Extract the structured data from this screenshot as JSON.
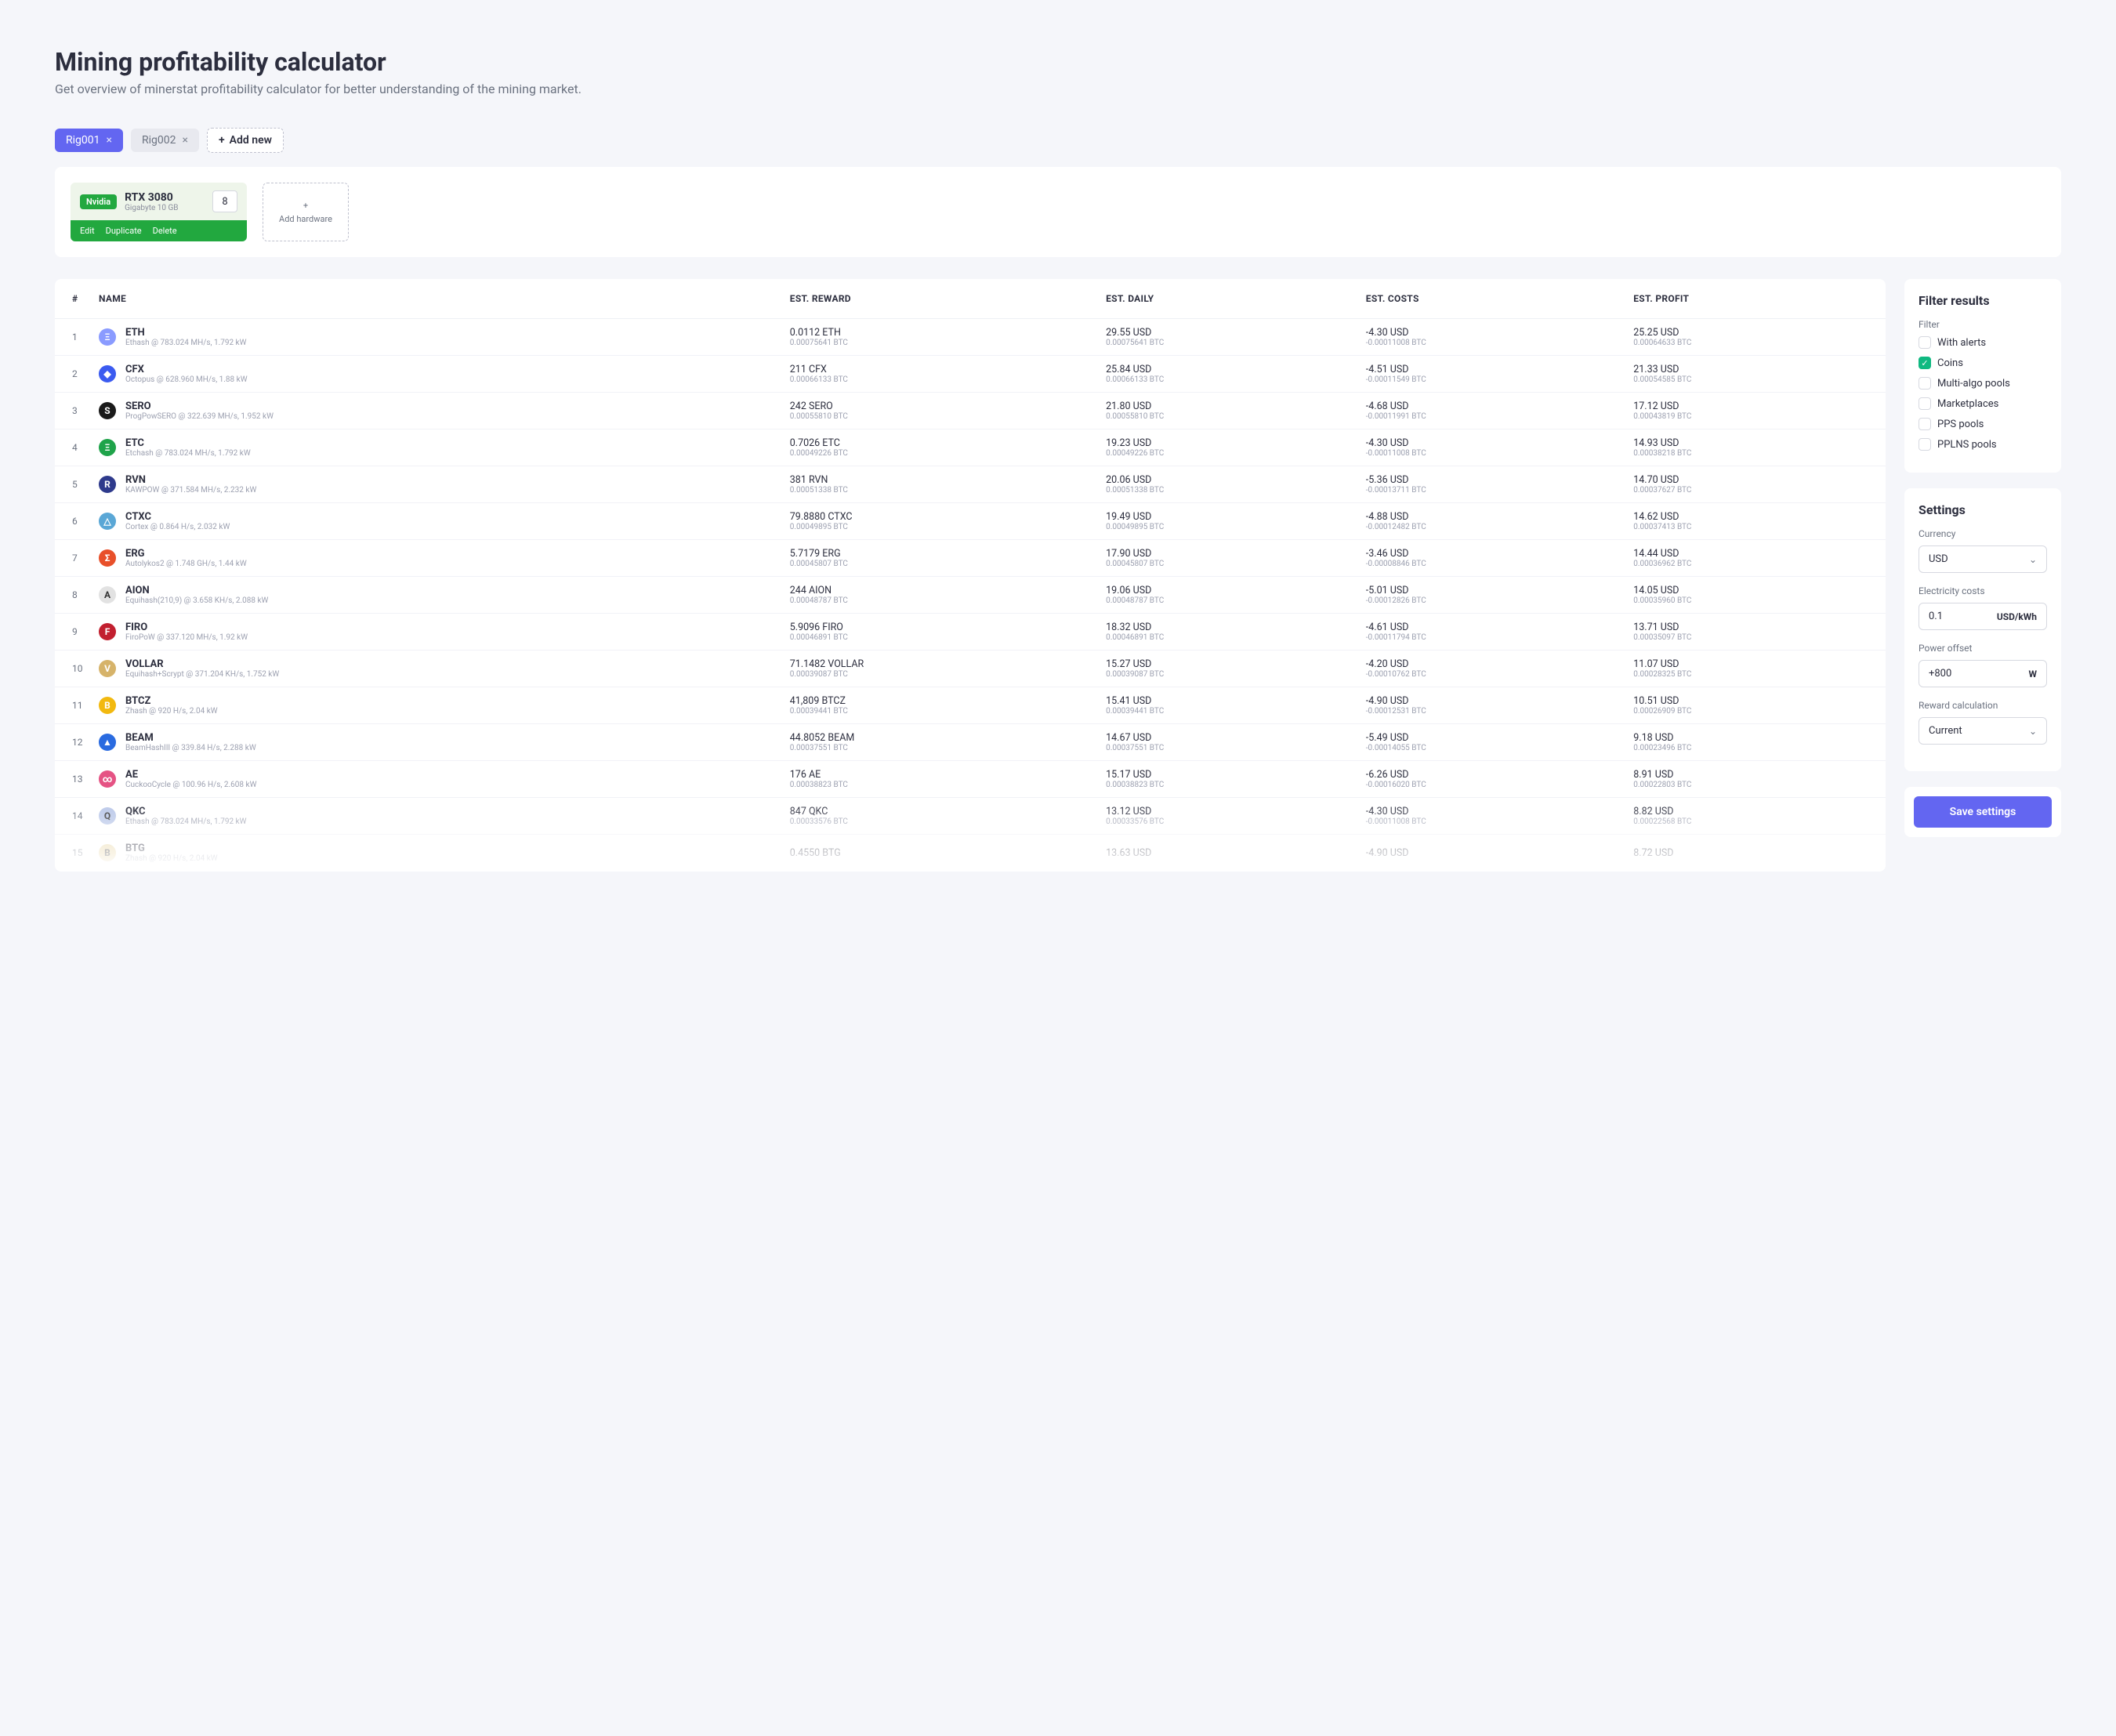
{
  "header": {
    "title": "Mining profitability calculator",
    "subtitle": "Get overview of minerstat profitability calculator for better understanding of the mining market."
  },
  "tabs": [
    {
      "label": "Rig001",
      "active": true
    },
    {
      "label": "Rig002",
      "active": false
    }
  ],
  "add_tab_label": "Add new",
  "hardware": {
    "brand": "Nvidia",
    "name": "RTX 3080",
    "sub": "Gigabyte 10 GB",
    "qty": "8",
    "actions": {
      "edit": "Edit",
      "duplicate": "Duplicate",
      "delete": "Delete"
    }
  },
  "add_hardware_label": "Add hardware",
  "table": {
    "headers": {
      "num": "#",
      "name": "NAME",
      "reward": "EST. REWARD",
      "daily": "EST. DAILY",
      "costs": "EST. COSTS",
      "profit": "EST. PROFIT"
    },
    "rows": [
      {
        "n": "1",
        "icon_bg": "#8a9bff",
        "icon_txt": "Ξ",
        "name": "ETH",
        "algo": "Ethash @ 783.024 MH/s, 1.792 kW",
        "reward": "0.0112 ETH",
        "reward_btc": "0.00075641 BTC",
        "daily": "29.55 USD",
        "daily_btc": "0.00075641 BTC",
        "costs": "-4.30 USD",
        "costs_btc": "-0.00011008 BTC",
        "profit": "25.25 USD",
        "profit_btc": "0.00064633 BTC"
      },
      {
        "n": "2",
        "icon_bg": "#3b5bf0",
        "icon_txt": "◆",
        "name": "CFX",
        "algo": "Octopus @ 628.960 MH/s, 1.88 kW",
        "reward": "211 CFX",
        "reward_btc": "0.00066133 BTC",
        "daily": "25.84 USD",
        "daily_btc": "0.00066133 BTC",
        "costs": "-4.51 USD",
        "costs_btc": "-0.00011549 BTC",
        "profit": "21.33 USD",
        "profit_btc": "0.00054585 BTC"
      },
      {
        "n": "3",
        "icon_bg": "#1a1a1a",
        "icon_txt": "S",
        "name": "SERO",
        "algo": "ProgPowSERO @ 322.639 MH/s, 1.952 kW",
        "reward": "242 SERO",
        "reward_btc": "0.00055810 BTC",
        "daily": "21.80 USD",
        "daily_btc": "0.00055810 BTC",
        "costs": "-4.68 USD",
        "costs_btc": "-0.00011991 BTC",
        "profit": "17.12 USD",
        "profit_btc": "0.00043819 BTC"
      },
      {
        "n": "4",
        "icon_bg": "#1fa34a",
        "icon_txt": "Ξ",
        "name": "ETC",
        "algo": "Etchash @ 783.024 MH/s, 1.792 kW",
        "reward": "0.7026 ETC",
        "reward_btc": "0.00049226 BTC",
        "daily": "19.23 USD",
        "daily_btc": "0.00049226 BTC",
        "costs": "-4.30 USD",
        "costs_btc": "-0.00011008 BTC",
        "profit": "14.93 USD",
        "profit_btc": "0.00038218 BTC"
      },
      {
        "n": "5",
        "icon_bg": "#2e3a8c",
        "icon_txt": "R",
        "name": "RVN",
        "algo": "KAWPOW @ 371.584 MH/s, 2.232 kW",
        "reward": "381 RVN",
        "reward_btc": "0.00051338 BTC",
        "daily": "20.06 USD",
        "daily_btc": "0.00051338 BTC",
        "costs": "-5.36 USD",
        "costs_btc": "-0.00013711 BTC",
        "profit": "14.70 USD",
        "profit_btc": "0.00037627 BTC"
      },
      {
        "n": "6",
        "icon_bg": "#5aa7d6",
        "icon_txt": "△",
        "name": "CTXC",
        "algo": "Cortex @ 0.864 H/s, 2.032 kW",
        "reward": "79.8880 CTXC",
        "reward_btc": "0.00049895 BTC",
        "daily": "19.49 USD",
        "daily_btc": "0.00049895 BTC",
        "costs": "-4.88 USD",
        "costs_btc": "-0.00012482 BTC",
        "profit": "14.62 USD",
        "profit_btc": "0.00037413 BTC"
      },
      {
        "n": "7",
        "icon_bg": "#e8502a",
        "icon_txt": "Σ",
        "name": "ERG",
        "algo": "Autolykos2 @ 1.748 GH/s, 1.44 kW",
        "reward": "5.7179 ERG",
        "reward_btc": "0.00045807 BTC",
        "daily": "17.90 USD",
        "daily_btc": "0.00045807 BTC",
        "costs": "-3.46 USD",
        "costs_btc": "-0.00008846 BTC",
        "profit": "14.44 USD",
        "profit_btc": "0.00036962 BTC"
      },
      {
        "n": "8",
        "icon_bg": "#e2e2e2",
        "icon_txt": "A",
        "name": "AION",
        "algo": "Equihash(210,9) @ 3.658 KH/s, 2.088 kW",
        "reward": "244 AION",
        "reward_btc": "0.00048787 BTC",
        "daily": "19.06 USD",
        "daily_btc": "0.00048787 BTC",
        "costs": "-5.01 USD",
        "costs_btc": "-0.00012826 BTC",
        "profit": "14.05 USD",
        "profit_btc": "0.00035960 BTC"
      },
      {
        "n": "9",
        "icon_bg": "#c21f2f",
        "icon_txt": "F",
        "name": "FIRO",
        "algo": "FiroPoW @ 337.120 MH/s, 1.92 kW",
        "reward": "5.9096 FIRO",
        "reward_btc": "0.00046891 BTC",
        "daily": "18.32 USD",
        "daily_btc": "0.00046891 BTC",
        "costs": "-4.61 USD",
        "costs_btc": "-0.00011794 BTC",
        "profit": "13.71 USD",
        "profit_btc": "0.00035097 BTC"
      },
      {
        "n": "10",
        "icon_bg": "#d6b36a",
        "icon_txt": "V",
        "name": "VOLLAR",
        "algo": "Equihash+Scrypt @ 371.204 KH/s, 1.752 kW",
        "reward": "71.1482 VOLLAR",
        "reward_btc": "0.00039087 BTC",
        "daily": "15.27 USD",
        "daily_btc": "0.00039087 BTC",
        "costs": "-4.20 USD",
        "costs_btc": "-0.00010762 BTC",
        "profit": "11.07 USD",
        "profit_btc": "0.00028325 BTC"
      },
      {
        "n": "11",
        "icon_bg": "#f2b90f",
        "icon_txt": "B",
        "name": "BTCZ",
        "algo": "Zhash @ 920 H/s, 2.04 kW",
        "reward": "41,809 BTCZ",
        "reward_btc": "0.00039441 BTC",
        "daily": "15.41 USD",
        "daily_btc": "0.00039441 BTC",
        "costs": "-4.90 USD",
        "costs_btc": "-0.00012531 BTC",
        "profit": "10.51 USD",
        "profit_btc": "0.00026909 BTC"
      },
      {
        "n": "12",
        "icon_bg": "#2a6be0",
        "icon_txt": "▲",
        "name": "BEAM",
        "algo": "BeamHashIII @ 339.84 H/s, 2.288 kW",
        "reward": "44.8052 BEAM",
        "reward_btc": "0.00037551 BTC",
        "daily": "14.67 USD",
        "daily_btc": "0.00037551 BTC",
        "costs": "-5.49 USD",
        "costs_btc": "-0.00014055 BTC",
        "profit": "9.18 USD",
        "profit_btc": "0.00023496 BTC"
      },
      {
        "n": "13",
        "icon_bg": "#e55384",
        "icon_txt": "∞",
        "name": "AE",
        "algo": "CuckooCycle @ 100.96 H/s, 2.608 kW",
        "reward": "176 AE",
        "reward_btc": "0.00038823 BTC",
        "daily": "15.17 USD",
        "daily_btc": "0.00038823 BTC",
        "costs": "-6.26 USD",
        "costs_btc": "-0.00016020 BTC",
        "profit": "8.91 USD",
        "profit_btc": "0.00022803 BTC"
      },
      {
        "n": "14",
        "icon_bg": "#b8c6e8",
        "icon_txt": "Q",
        "name": "QKC",
        "algo": "Ethash @ 783.024 MH/s, 1.792 kW",
        "reward": "847 QKC",
        "reward_btc": "0.00033576 BTC",
        "daily": "13.12 USD",
        "daily_btc": "0.00033576 BTC",
        "costs": "-4.30 USD",
        "costs_btc": "-0.00011008 BTC",
        "profit": "8.82 USD",
        "profit_btc": "0.00022568 BTC"
      },
      {
        "n": "15",
        "icon_bg": "#e8d4a0",
        "icon_txt": "B",
        "name": "BTG",
        "algo": "Zhash @ 920 H/s, 2.04 kW",
        "reward": "0.4550 BTG",
        "reward_btc": "",
        "daily": "13.63 USD",
        "daily_btc": "",
        "costs": "-4.90 USD",
        "costs_btc": "",
        "profit": "8.72 USD",
        "profit_btc": ""
      }
    ]
  },
  "filter": {
    "title": "Filter results",
    "label": "Filter",
    "items": [
      {
        "label": "With alerts",
        "checked": false
      },
      {
        "label": "Coins",
        "checked": true
      },
      {
        "label": "Multi-algo pools",
        "checked": false
      },
      {
        "label": "Marketplaces",
        "checked": false
      },
      {
        "label": "PPS pools",
        "checked": false
      },
      {
        "label": "PPLNS pools",
        "checked": false
      }
    ]
  },
  "settings": {
    "title": "Settings",
    "currency_label": "Currency",
    "currency_value": "USD",
    "elec_label": "Electricity costs",
    "elec_value": "0.1",
    "elec_unit": "USD/kWh",
    "power_label": "Power offset",
    "power_value": "+800",
    "power_unit": "W",
    "reward_label": "Reward calculation",
    "reward_value": "Current",
    "save_label": "Save settings"
  }
}
